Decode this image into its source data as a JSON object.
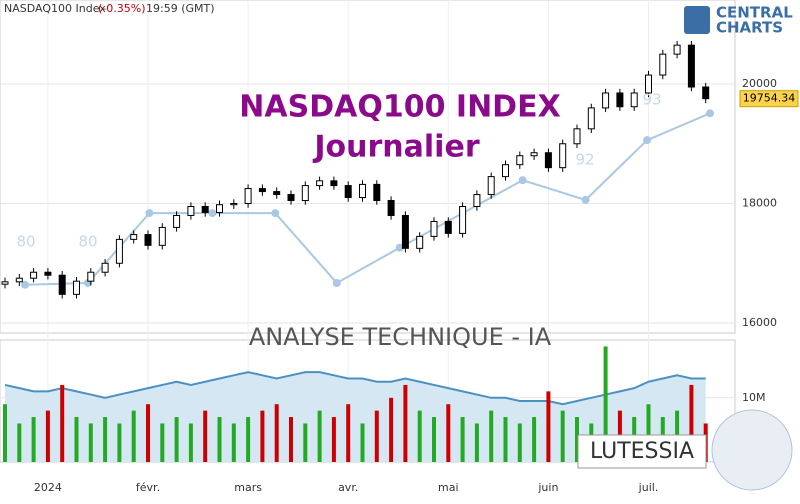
{
  "header": {
    "symbol": "NASDAQ100 Index",
    "change": "(-0.35%)",
    "time": "19:59 (GMT)"
  },
  "logo": {
    "line1": "CENTRAL",
    "line2": "CHARTS"
  },
  "chart_data": {
    "type": "candlestick",
    "title": "NASDAQ100 INDEX",
    "subtitle": "Journalier",
    "watermark": "ANALYSE TECHNIQUE - IA",
    "brand": "LUTESSIA",
    "categories": [
      null,
      null,
      null,
      "2024",
      null,
      null,
      null,
      null,
      null,
      null,
      "févr.",
      null,
      null,
      null,
      null,
      null,
      null,
      "mars",
      null,
      null,
      null,
      null,
      null,
      null,
      "avr.",
      null,
      null,
      null,
      null,
      null,
      null,
      "mai",
      null,
      null,
      null,
      null,
      null,
      null,
      "juin",
      null,
      null,
      null,
      null,
      null,
      null,
      "juil.",
      null,
      null,
      null,
      null
    ],
    "open": [
      16650,
      16690,
      16750,
      16850,
      16800,
      16480,
      16700,
      16850,
      17000,
      17400,
      17480,
      17300,
      17600,
      17800,
      17950,
      17850,
      17980,
      18000,
      18250,
      18200,
      18150,
      18050,
      18300,
      18380,
      18300,
      18100,
      18320,
      18050,
      17800,
      17250,
      17450,
      17700,
      17500,
      17950,
      18150,
      18450,
      18650,
      18800,
      18850,
      18600,
      19000,
      19250,
      19600,
      19850,
      19620,
      19850,
      20150,
      20500,
      20650,
      19950
    ],
    "high": [
      16760,
      16820,
      16920,
      16920,
      16870,
      16770,
      16920,
      17070,
      17470,
      17550,
      17550,
      17670,
      17870,
      18020,
      18020,
      18050,
      18070,
      18320,
      18320,
      18270,
      18220,
      18370,
      18450,
      18450,
      18370,
      18390,
      18390,
      18120,
      17870,
      17520,
      17770,
      17770,
      18020,
      18220,
      18520,
      18720,
      18870,
      18920,
      18920,
      19070,
      19320,
      19670,
      19920,
      19920,
      19920,
      20220,
      20570,
      20720,
      20720,
      20020
    ],
    "low": [
      16580,
      16620,
      16680,
      16730,
      16410,
      16410,
      16630,
      16780,
      16930,
      17330,
      17230,
      17230,
      17530,
      17730,
      17780,
      17780,
      17910,
      17930,
      18130,
      18080,
      17980,
      17980,
      18230,
      18230,
      18030,
      18030,
      17980,
      17730,
      17180,
      17180,
      17380,
      17430,
      17430,
      17880,
      18080,
      18380,
      18580,
      18730,
      18530,
      18530,
      18930,
      19180,
      19530,
      19550,
      19550,
      19780,
      20080,
      20430,
      19880,
      19680
    ],
    "close": [
      16690,
      16750,
      16850,
      16800,
      16480,
      16700,
      16850,
      17000,
      17400,
      17480,
      17300,
      17600,
      17800,
      17950,
      17850,
      17980,
      18000,
      18250,
      18200,
      18150,
      18050,
      18300,
      18380,
      18300,
      18100,
      18320,
      18050,
      17800,
      17250,
      17450,
      17700,
      17500,
      17950,
      18150,
      18450,
      18650,
      18800,
      18850,
      18600,
      19000,
      19250,
      19600,
      19850,
      19620,
      19850,
      20150,
      20500,
      20650,
      19950,
      19754.34
    ],
    "up_color": "#ffffff",
    "down_color": "#000000",
    "ylim": [
      15833,
      21406
    ],
    "yticks": [
      16000,
      18000,
      20000
    ],
    "grid": true,
    "indicator": {
      "color": "#aac8e4",
      "x": [
        1.4,
        5.8,
        10.1,
        14.5,
        18.9,
        23.2,
        27.6,
        32,
        36.2,
        40.6,
        44.9,
        49.3
      ],
      "values": [
        16640,
        16670,
        17840,
        17840,
        17840,
        16670,
        17260,
        17840,
        18390,
        18060,
        19060,
        19510
      ]
    },
    "annotations": [
      "80",
      "80",
      "92",
      "93"
    ],
    "volume": [
      9000000,
      6000000,
      7000000,
      8000000,
      12000000,
      7000000,
      6000000,
      7000000,
      6000000,
      8000000,
      9000000,
      6000000,
      7000000,
      6000000,
      8000000,
      7000000,
      6000000,
      7000000,
      8000000,
      9000000,
      7000000,
      6000000,
      8000000,
      7000000,
      9000000,
      6000000,
      8000000,
      10000000,
      12000000,
      8000000,
      7000000,
      9000000,
      7000000,
      6000000,
      8000000,
      7000000,
      6000000,
      7000000,
      11000000,
      8000000,
      7000000,
      6000000,
      18000000,
      8000000,
      7000000,
      9000000,
      7000000,
      8000000,
      12000000,
      6000000
    ],
    "volume_ma": [
      12000000,
      11500000,
      11000000,
      11000000,
      11500000,
      11000000,
      10500000,
      10000000,
      10500000,
      11000000,
      11500000,
      12000000,
      12500000,
      12000000,
      12500000,
      13000000,
      13500000,
      14000000,
      13500000,
      13000000,
      13500000,
      14000000,
      14000000,
      13500000,
      13000000,
      13000000,
      12500000,
      12500000,
      13000000,
      12500000,
      12000000,
      11500000,
      11000000,
      10500000,
      10000000,
      10000000,
      9500000,
      9500000,
      9500000,
      9000000,
      9500000,
      10000000,
      10500000,
      11000000,
      11500000,
      12500000,
      13000000,
      13500000,
      13000000,
      13000000
    ],
    "volume_up_color": "#22aa22",
    "volume_down_color": "#cc0000",
    "volume_ma_color": "#4a90c2",
    "volume_ylim": [
      0,
      19000000
    ],
    "volume_yticks": [
      {
        "value": 10000000,
        "label": "10M"
      }
    ]
  }
}
